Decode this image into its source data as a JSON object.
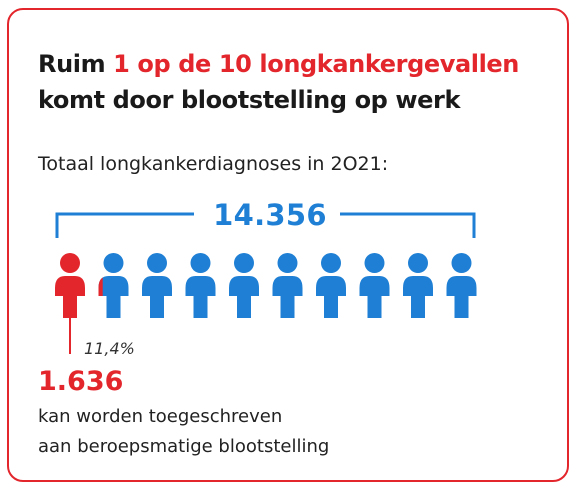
{
  "colors": {
    "accent": "#e3262c",
    "blue": "#1e7fd4",
    "text": "#1a1a1a"
  },
  "headline": {
    "prefix": "Ruim ",
    "highlight": "1 op de 10 longkankergevallen",
    "line2": "komt door blootstelling op werk"
  },
  "subtitle": "Totaal longkankerdiagnoses in 2O21:",
  "total": "14.356",
  "people": {
    "count": 10,
    "red_share": 0.114,
    "icon": "person-icon"
  },
  "percentage": "11,4%",
  "attributed": {
    "count": "1.636",
    "line1": "kan worden toegeschreven",
    "line2": "aan beroepsmatige blootstelling"
  }
}
